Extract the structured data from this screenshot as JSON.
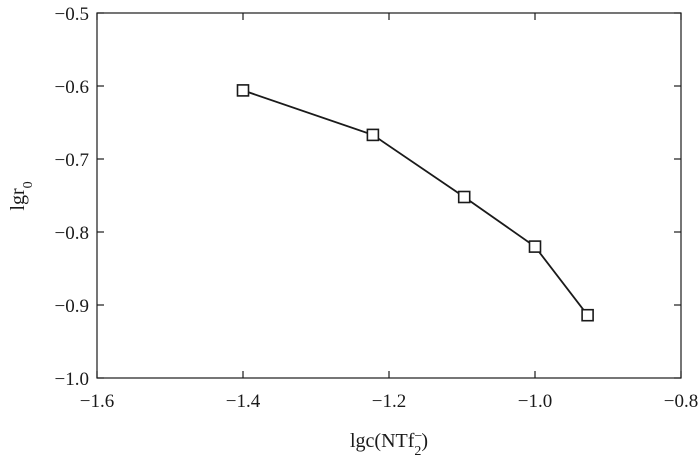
{
  "chart_data": {
    "type": "line",
    "title": "",
    "xlabel": {
      "base": "lgc(NTf",
      "superscript": "−",
      "subscript": "2",
      "close": ")"
    },
    "ylabel": {
      "base": "lgr",
      "subscript": "0"
    },
    "xlim": [
      -1.6,
      -0.8
    ],
    "ylim": [
      -1.0,
      -0.5
    ],
    "xticks": [
      -1.6,
      -1.4,
      -1.2,
      -1.0,
      -0.8
    ],
    "xtick_labels": [
      "−1.6",
      "−1.4",
      "−1.2",
      "−1.0",
      "−0.8"
    ],
    "yticks": [
      -1.0,
      -0.9,
      -0.8,
      -0.7,
      -0.6,
      -0.5
    ],
    "ytick_labels": [
      "−1.0",
      "−0.9",
      "−0.8",
      "−0.7",
      "−0.6",
      "−0.5"
    ],
    "grid": false,
    "legend": "none",
    "marker": "open-square",
    "series": [
      {
        "x": [
          -1.4,
          -1.222,
          -1.097,
          -1.0,
          -0.928
        ],
        "y": [
          -0.606,
          -0.667,
          -0.752,
          -0.82,
          -0.914
        ]
      }
    ],
    "colors": {
      "line": "#1a1a1a",
      "axis": "#1a1a1a",
      "marker_fill": "#ffffff"
    }
  }
}
